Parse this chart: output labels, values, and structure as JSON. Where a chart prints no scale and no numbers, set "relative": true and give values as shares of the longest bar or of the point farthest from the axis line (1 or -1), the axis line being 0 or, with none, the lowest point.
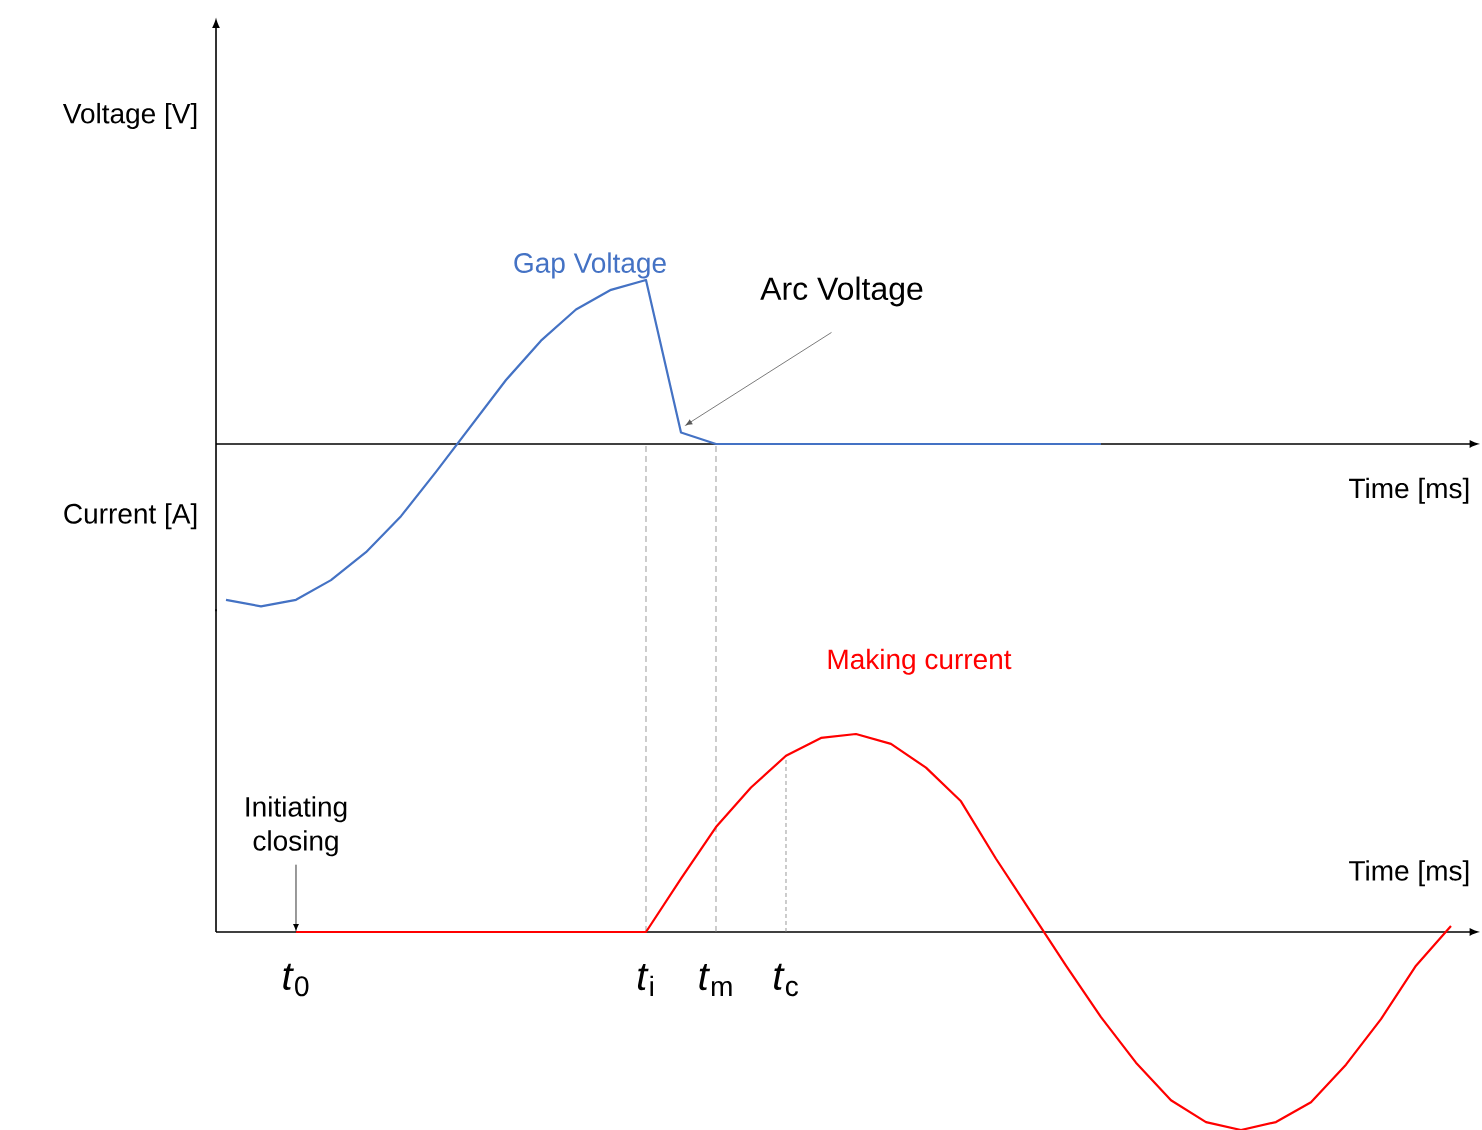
{
  "chart_data": [
    {
      "type": "line",
      "relative": true,
      "ylabel": "Voltage [V]",
      "xlabel": "Time [ms]",
      "tick_labels": false,
      "marker": "none",
      "line_style": "solid",
      "categories": [
        null,
        null,
        null,
        null,
        null,
        null,
        null,
        null,
        null,
        null,
        null,
        null,
        null,
        null,
        null,
        null,
        null,
        null,
        null,
        null,
        null,
        null,
        null,
        null,
        null,
        null,
        null,
        null,
        null,
        null,
        null,
        null,
        null,
        null,
        null,
        null
      ],
      "series": [
        {
          "name": "Gap Voltage",
          "color": "#4472c4",
          "values": [
            -0.95,
            -0.99,
            -0.95,
            -0.83,
            -0.66,
            -0.44,
            -0.17,
            0.11,
            0.39,
            0.63,
            0.82,
            0.94,
            1,
            0.07,
            0,
            0,
            0,
            0,
            0,
            0,
            0,
            0,
            0,
            0,
            0,
            0,
            null,
            null,
            null,
            null,
            null,
            null,
            null,
            null,
            null,
            null
          ]
        }
      ],
      "annotations": [
        "Arc Voltage"
      ]
    },
    {
      "type": "line",
      "relative": true,
      "ylabel": "Current [A]",
      "xlabel": "Time [ms]",
      "tick_labels": "x",
      "marker": "none",
      "line_style": "solid",
      "categories": [
        null,
        null,
        "*t*$_{0}$",
        null,
        null,
        null,
        null,
        null,
        null,
        null,
        null,
        null,
        "*t*$_{i}$",
        null,
        "*t*$_{m}$",
        null,
        "*t*$_{c}$",
        null,
        null,
        null,
        null,
        null,
        null,
        null,
        null,
        null,
        null,
        null,
        null,
        null,
        null,
        null,
        null,
        null,
        null,
        null
      ],
      "series": [
        {
          "name": "Making current",
          "color": "#ff0000",
          "values": [
            null,
            null,
            0,
            0,
            0,
            0,
            0,
            0,
            0,
            0,
            0,
            0,
            0,
            0.27,
            0.53,
            0.73,
            0.89,
            0.98,
            1,
            0.95,
            0.83,
            0.66,
            0.37,
            0.1,
            -0.17,
            -0.43,
            -0.66,
            -0.85,
            -0.96,
            -1,
            -0.96,
            -0.86,
            -0.67,
            -0.44,
            -0.17,
            0.03
          ]
        }
      ],
      "ref_lines": [
        {
          "axis": "x",
          "value": "*t*$_{i}$",
          "line_style": "dashed"
        },
        {
          "axis": "x",
          "value": "*t*$_{m}$",
          "line_style": "dashed"
        },
        {
          "axis": "x",
          "value": "*t*$_{c}$",
          "line_style": "dotted"
        }
      ],
      "annotations": [
        {
          "text": "Initiating closing",
          "x": "*t*$_{0}$",
          "y": 0
        }
      ]
    }
  ]
}
